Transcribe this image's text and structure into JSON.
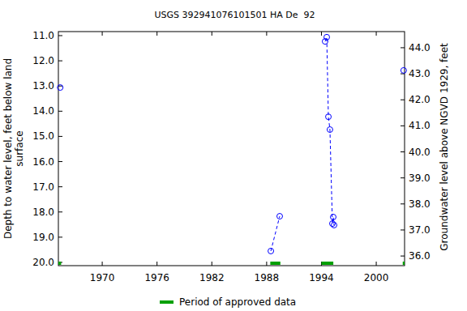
{
  "chart_data": {
    "type": "scatter",
    "title": "USGS 392941076101501 HA De  92",
    "ylabel": "Depth to water level, feet below land surface",
    "y2label": "Groundwater level above NGVD 1929, feet",
    "xlim": [
      1965.2,
      2003.1
    ],
    "xticks": [
      1970,
      1976,
      1982,
      1988,
      1994,
      2000
    ],
    "ylim": [
      20.13,
      10.84
    ],
    "yticks": [
      {
        "value": 11,
        "label": "11.0"
      },
      {
        "value": 12,
        "label": "12.0"
      },
      {
        "value": 13,
        "label": "13.0"
      },
      {
        "value": 14,
        "label": "14.0"
      },
      {
        "value": 15,
        "label": "15.0"
      },
      {
        "value": 16,
        "label": "16.0"
      },
      {
        "value": 17,
        "label": "17.0"
      },
      {
        "value": 18,
        "label": "18.0"
      },
      {
        "value": 19,
        "label": "19.0"
      },
      {
        "value": 20,
        "label": "20.0"
      }
    ],
    "y2lim": [
      35.63,
      44.62
    ],
    "y2ticks": [
      {
        "value": 36,
        "label": "36.0"
      },
      {
        "value": 37,
        "label": "37.0"
      },
      {
        "value": 38,
        "label": "38.0"
      },
      {
        "value": 39,
        "label": "39.0"
      },
      {
        "value": 40,
        "label": "40.0"
      },
      {
        "value": 41,
        "label": "41.0"
      },
      {
        "value": 42,
        "label": "42.0"
      },
      {
        "value": 43,
        "label": "43.0"
      },
      {
        "value": 44,
        "label": "44.0"
      }
    ],
    "grid": false,
    "series": [
      {
        "color": "#0000ff",
        "marker": "circle",
        "line_style": "dashed",
        "x": [
          1965.4,
          null,
          1988.46,
          1989.43,
          null,
          1994.4,
          1994.58,
          1994.76,
          1994.93,
          1995.2,
          1995.29,
          1995.38,
          null,
          2003.0
        ],
        "values": [
          13.06,
          null,
          19.55,
          18.17,
          null,
          11.23,
          11.06,
          14.22,
          14.73,
          18.46,
          18.2,
          18.52,
          null,
          12.38
        ]
      }
    ],
    "approved_periods": {
      "name": "Period of approved data",
      "color": "#00a000",
      "ranges": [
        [
          1965.2,
          1965.5
        ],
        [
          1988.4,
          1989.5
        ],
        [
          1994.0,
          1995.3
        ],
        [
          2002.9,
          2003.1
        ]
      ]
    },
    "legend": "bottom"
  }
}
